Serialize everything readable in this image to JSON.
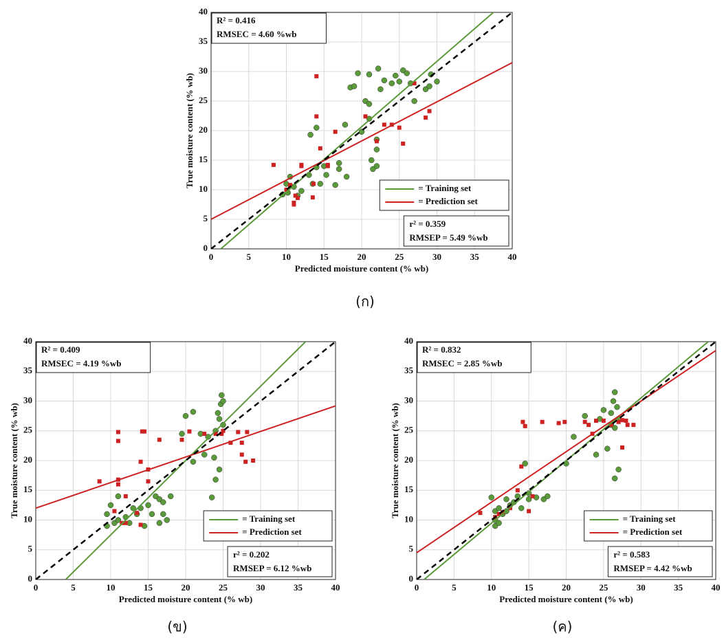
{
  "chart_data": [
    {
      "type": "scatter",
      "caption": "(ก)",
      "xlabel": "Predicted moisture content (% wb)",
      "ylabel": "True moisture content (% wb)",
      "xlim": [
        0,
        40
      ],
      "ylim": [
        0,
        40
      ],
      "xticks": [
        0,
        5,
        10,
        15,
        20,
        25,
        30,
        35,
        40
      ],
      "yticks": [
        0,
        5,
        10,
        15,
        20,
        25,
        30,
        35,
        40
      ],
      "grid": true,
      "legend": "lower right",
      "train_stats": [
        "R² = 0.416",
        "RMSEC = 4.60 %wb"
      ],
      "test_stats": [
        "r² = 0.359",
        "RMSEP = 5.49 %wb"
      ],
      "reference_line": {
        "x": [
          0,
          40
        ],
        "y": [
          0,
          40
        ],
        "color": "#000000"
      },
      "series": [
        {
          "name": "= Training set",
          "color": "#5a9a3a",
          "marker": "circle",
          "fit": {
            "x": [
              1.3,
              37.5
            ],
            "y": [
              0,
              40
            ]
          },
          "x": [
            9.5,
            10,
            10.2,
            10.5,
            11,
            11.5,
            12,
            13,
            13.2,
            13.5,
            14,
            14,
            14.5,
            15,
            15.3,
            16.5,
            17,
            17,
            17.8,
            18.5,
            19,
            19.5,
            20,
            20.5,
            21,
            21,
            21.3,
            21.5,
            22,
            22.2,
            22,
            22,
            22.5,
            23,
            24,
            24.5,
            25,
            25.5,
            26,
            26.5,
            27,
            28.5,
            29,
            29.2,
            30,
            18,
            21
          ],
          "values": [
            9.2,
            11,
            9.5,
            12.2,
            10.5,
            9,
            9.8,
            12.5,
            19.3,
            11,
            13.8,
            20.5,
            11,
            14,
            12.5,
            10.8,
            13.5,
            14.5,
            21,
            27.3,
            27.5,
            29.7,
            19.8,
            25,
            29.5,
            24.5,
            15,
            13.5,
            18.5,
            30.5,
            16.8,
            14,
            27,
            28.5,
            28,
            29.3,
            28.3,
            30.2,
            29.7,
            28,
            25,
            27,
            27.5,
            29.5,
            28.3,
            12.2,
            22
          ]
        },
        {
          "name": "= Prediction set",
          "color": "#cc2222",
          "marker": "square",
          "fit": {
            "x": [
              0,
              40
            ],
            "y": [
              5,
              31.5
            ]
          },
          "x": [
            8.3,
            10,
            10.5,
            11,
            11,
            11.2,
            11.5,
            12,
            13.5,
            13.6,
            14,
            14,
            14.5,
            15.5,
            16.5,
            20.5,
            22,
            23,
            24,
            25,
            25.5,
            27,
            28.5,
            29,
            15.5,
            12
          ],
          "values": [
            14.2,
            10,
            10.8,
            7.8,
            7.5,
            9,
            8.6,
            14.2,
            8.7,
            11,
            29.2,
            22.4,
            17,
            14,
            19.8,
            22.4,
            18.2,
            21,
            21,
            20.5,
            17.8,
            28,
            22.2,
            23.3,
            14.2,
            14
          ]
        }
      ]
    },
    {
      "type": "scatter",
      "caption": "(ข)",
      "xlabel": "Predicted moisture content (% wb)",
      "ylabel": "True moisture content (% wb)",
      "xlim": [
        0,
        40
      ],
      "ylim": [
        0,
        40
      ],
      "xticks": [
        0,
        5,
        10,
        15,
        20,
        25,
        30,
        35,
        40
      ],
      "yticks": [
        0,
        5,
        10,
        15,
        20,
        25,
        30,
        35,
        40
      ],
      "grid": true,
      "legend": "lower right",
      "train_stats": [
        "R² = 0.409",
        "RMSEC = 4.19 %wb"
      ],
      "test_stats": [
        "r² = 0.202",
        "RMSEP = 6.12 %wb"
      ],
      "reference_line": {
        "x": [
          0,
          40
        ],
        "y": [
          0,
          40
        ],
        "color": "#000000"
      },
      "series": [
        {
          "name": "= Training set",
          "color": "#5a9a3a",
          "marker": "circle",
          "fit": {
            "x": [
              4,
              36
            ],
            "y": [
              0,
              40
            ]
          },
          "x": [
            9.5,
            9.5,
            10,
            10.5,
            11,
            11,
            12,
            12.5,
            13,
            13.5,
            14,
            14.5,
            15,
            15.5,
            16,
            16.5,
            16.5,
            17,
            17,
            17.5,
            18,
            19.5,
            20,
            21,
            22,
            23,
            23.5,
            23.8,
            24,
            24,
            24.3,
            24.5,
            24.5,
            24.7,
            24.8,
            25,
            25,
            22.5,
            21
          ],
          "values": [
            9,
            11,
            12.5,
            9.5,
            14,
            10,
            10.5,
            9.5,
            12,
            11,
            12,
            9,
            12.5,
            11,
            14,
            13.5,
            9.5,
            13,
            11,
            10,
            14,
            24.5,
            27.5,
            28.2,
            24.5,
            24,
            13.8,
            20.5,
            16.8,
            25,
            28,
            27,
            18.5,
            29.5,
            31,
            30,
            26,
            21,
            19.8
          ]
        },
        {
          "name": "= Prediction set",
          "color": "#cc2222",
          "marker": "square",
          "fit": {
            "x": [
              0,
              40
            ],
            "y": [
              12,
              29.2
            ]
          },
          "x": [
            8.5,
            10.5,
            11,
            11,
            11,
            11,
            11.5,
            12,
            12,
            13.5,
            14,
            14,
            14.2,
            14.5,
            15,
            15,
            16.5,
            19.5,
            20.5,
            22.5,
            24,
            24.8,
            25,
            26,
            27,
            27.5,
            27.5,
            28,
            28.2,
            29
          ],
          "values": [
            16.5,
            11.5,
            16,
            16.8,
            23.3,
            24.8,
            9.5,
            9.5,
            14,
            11.2,
            19.8,
            9.2,
            24.9,
            24.9,
            16.5,
            18.5,
            23.5,
            23.5,
            24.9,
            24.5,
            24.5,
            24.5,
            25,
            23,
            24.8,
            21,
            23,
            19.8,
            24.8,
            20
          ]
        }
      ]
    },
    {
      "type": "scatter",
      "caption": "(ค)",
      "xlabel": "Predicted moisture content (% wb)",
      "ylabel": "True moisture content (% wb)",
      "xlim": [
        0,
        40
      ],
      "ylim": [
        0,
        40
      ],
      "xticks": [
        0,
        5,
        10,
        15,
        20,
        25,
        30,
        35,
        40
      ],
      "yticks": [
        0,
        5,
        10,
        15,
        20,
        25,
        30,
        35,
        40
      ],
      "grid": true,
      "legend": "lower right",
      "train_stats": [
        "R² = 0.832",
        "RMSEC = 2.85 %wb"
      ],
      "test_stats": [
        "r² = 0.583",
        "RMSEP = 4.42 %wb"
      ],
      "reference_line": {
        "x": [
          0,
          40
        ],
        "y": [
          0,
          40
        ],
        "color": "#000000"
      },
      "series": [
        {
          "name": "= Training set",
          "color": "#5a9a3a",
          "marker": "circle",
          "fit": {
            "x": [
              1,
              39
            ],
            "y": [
              0,
              40
            ]
          },
          "x": [
            10,
            10.5,
            10.5,
            10.5,
            11,
            11,
            11.5,
            12,
            12,
            12.5,
            13,
            13.5,
            14,
            15,
            15,
            14.5,
            16,
            17,
            17.5,
            20,
            21,
            22.5,
            24,
            24.5,
            25,
            25.5,
            26,
            26,
            26.3,
            26.5,
            26.8,
            26.5,
            27,
            27,
            26.5
          ],
          "values": [
            13.8,
            9,
            10,
            11.5,
            9.5,
            12,
            11,
            13.5,
            11.5,
            12.5,
            13,
            14,
            12,
            13.5,
            14.5,
            19.5,
            13.8,
            13.5,
            14,
            19.5,
            24,
            27.5,
            21,
            27,
            28.5,
            22,
            26,
            28,
            30,
            31.5,
            29,
            17,
            18.5,
            27,
            25.5
          ]
        },
        {
          "name": "= Prediction set",
          "color": "#cc2222",
          "marker": "square",
          "fit": {
            "x": [
              0,
              40
            ],
            "y": [
              4.5,
              38.5
            ]
          },
          "x": [
            8.5,
            10.5,
            11,
            11.5,
            12.5,
            13.5,
            14,
            14.2,
            14.5,
            15,
            15.5,
            16.8,
            19,
            19.8,
            22.5,
            23,
            23.5,
            24,
            25,
            26,
            27,
            27.5,
            28,
            28.2,
            29,
            27.5
          ],
          "values": [
            11.2,
            10.5,
            11,
            11.3,
            12,
            15,
            19,
            26.5,
            25.8,
            11.5,
            14,
            26.5,
            26.3,
            26.5,
            26.5,
            26,
            24.5,
            26.7,
            26.7,
            26,
            26.5,
            22.2,
            26.7,
            26,
            26,
            26.8
          ]
        }
      ]
    }
  ]
}
